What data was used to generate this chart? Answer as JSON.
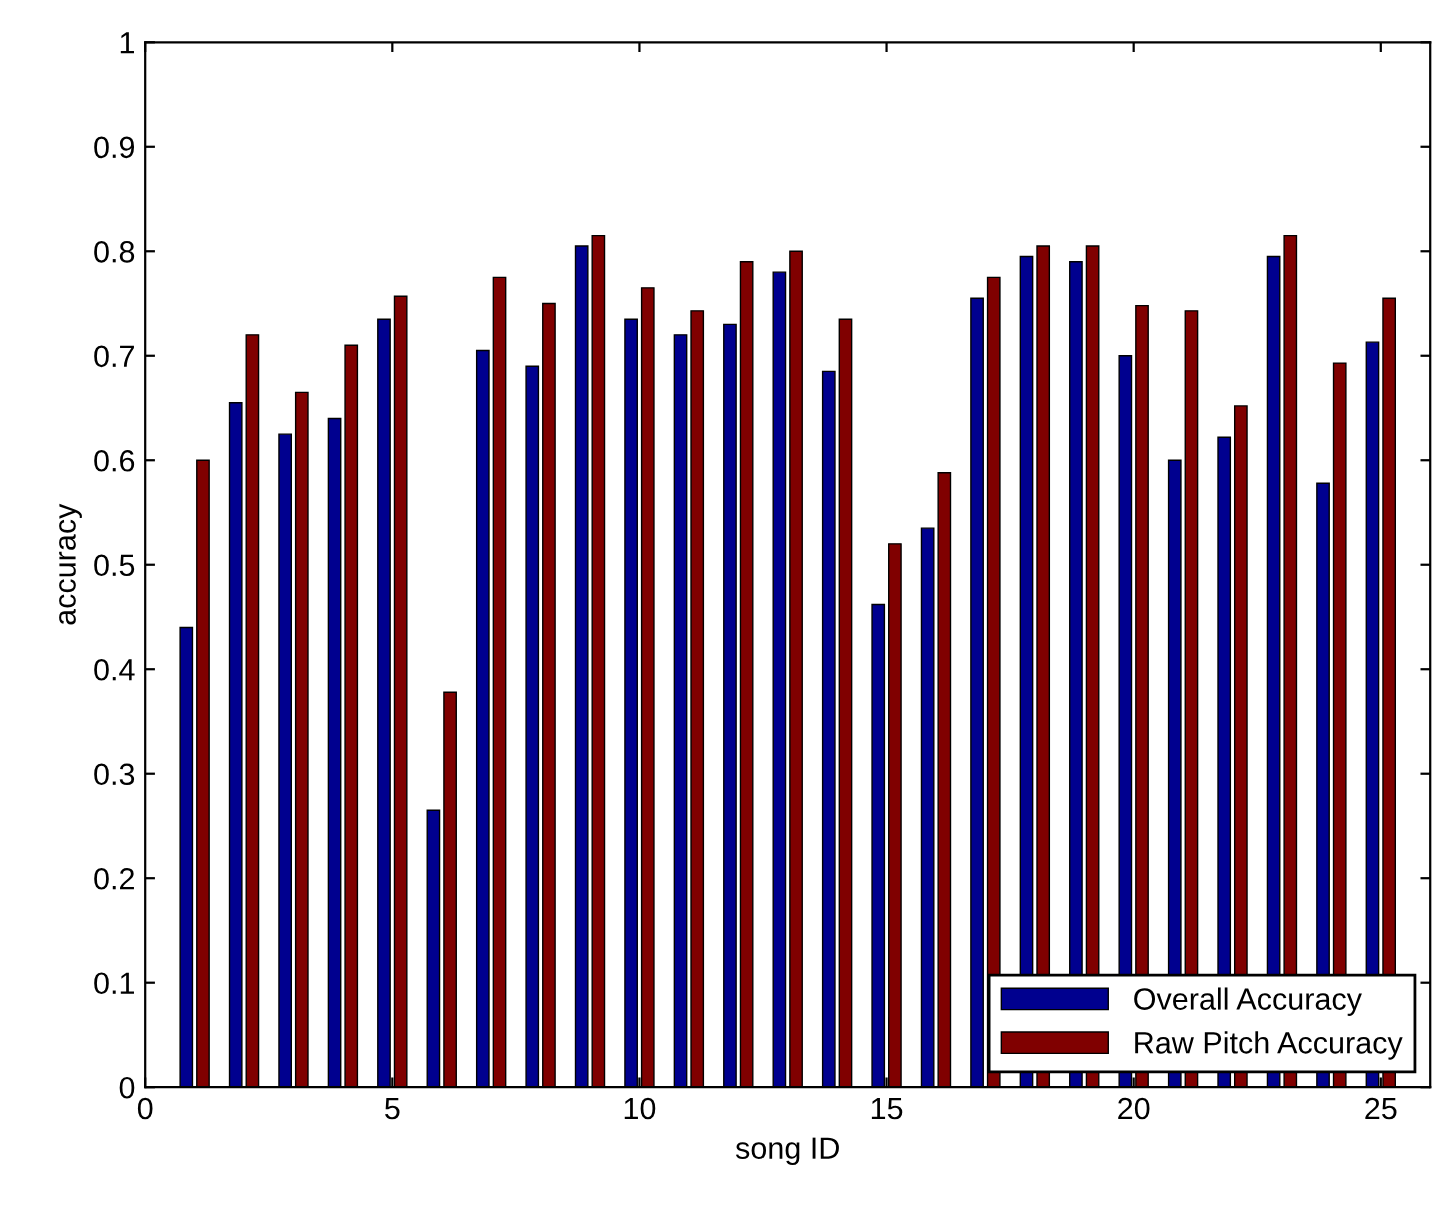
{
  "chart_data": {
    "type": "bar",
    "xlabel": "song ID",
    "ylabel": "accuracy",
    "x": [
      1,
      2,
      3,
      4,
      5,
      6,
      7,
      8,
      9,
      10,
      11,
      12,
      13,
      14,
      15,
      16,
      17,
      18,
      19,
      20,
      21,
      22,
      23,
      24,
      25
    ],
    "series": [
      {
        "name": "Overall Accuracy",
        "color": "#00008f",
        "values": [
          0.44,
          0.655,
          0.625,
          0.64,
          0.735,
          0.265,
          0.705,
          0.69,
          0.805,
          0.735,
          0.72,
          0.73,
          0.78,
          0.685,
          0.462,
          0.535,
          0.755,
          0.795,
          0.79,
          0.7,
          0.6,
          0.622,
          0.795,
          0.578,
          0.713
        ]
      },
      {
        "name": "Raw Pitch Accuracy",
        "color": "#800000",
        "values": [
          0.6,
          0.72,
          0.665,
          0.71,
          0.757,
          0.378,
          0.775,
          0.75,
          0.815,
          0.765,
          0.743,
          0.79,
          0.8,
          0.735,
          0.52,
          0.588,
          0.775,
          0.805,
          0.805,
          0.748,
          0.743,
          0.652,
          0.815,
          0.693,
          0.755
        ]
      }
    ],
    "xlim": [
      0,
      26
    ],
    "xticks": [
      0,
      5,
      10,
      15,
      20,
      25
    ],
    "ylim": [
      0,
      1
    ],
    "yticks": [
      0,
      0.1,
      0.2,
      0.3,
      0.4,
      0.5,
      0.6,
      0.7,
      0.8,
      0.9,
      1
    ],
    "legend": "bottom right",
    "grid": false
  }
}
